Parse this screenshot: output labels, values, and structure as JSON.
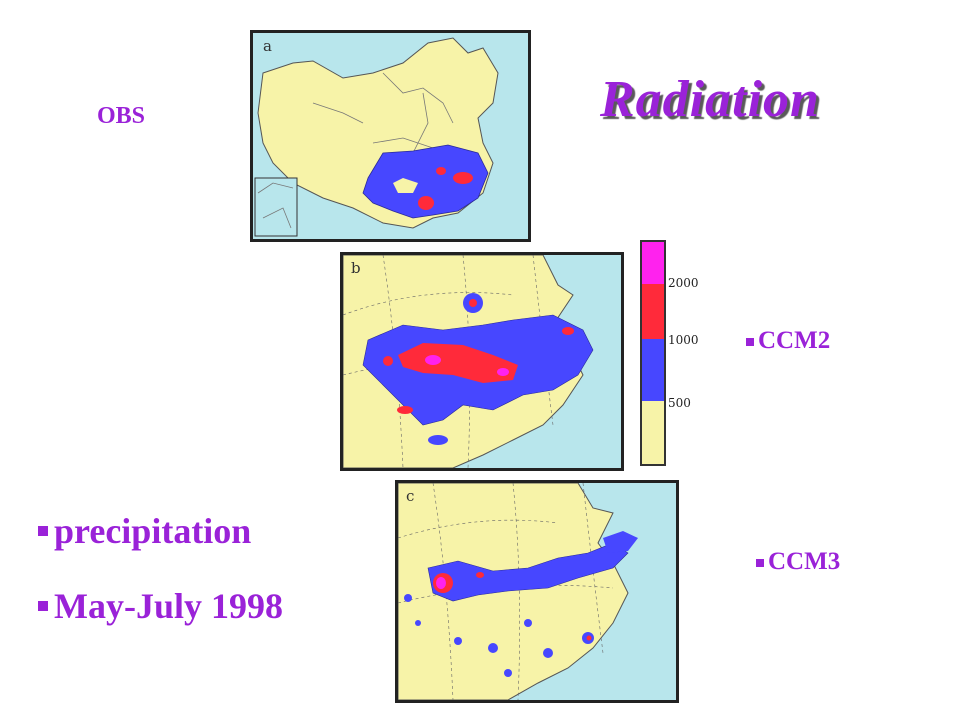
{
  "title": "Radiation",
  "labels": {
    "obs": "OBS",
    "ccm2": "CCM2",
    "ccm3": "CCM3"
  },
  "bullets": [
    "precipitation",
    "May-July 1998"
  ],
  "panels": {
    "a": "a",
    "b": "b",
    "c": "c"
  },
  "legend": {
    "ticks": [
      "2000",
      "1000",
      "500"
    ],
    "colors": [
      "#ff22ee",
      "#ff2a3a",
      "#4747ff",
      "#f7f3a8"
    ]
  },
  "colors": {
    "accent": "#9a22d8",
    "ocean": "#b8e6ec",
    "land": "#f7f3a8",
    "blue": "#4747ff",
    "red": "#ff2a3a",
    "magenta": "#ff22ee"
  }
}
